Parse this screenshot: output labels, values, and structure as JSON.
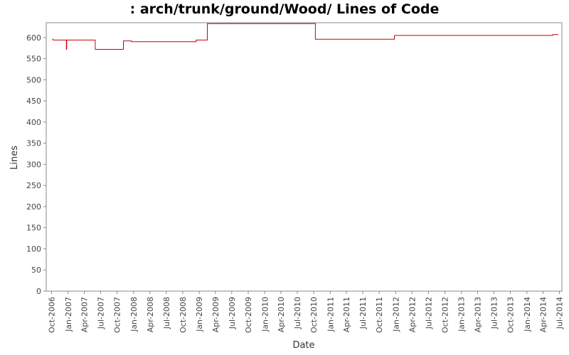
{
  "chart_data": {
    "type": "line",
    "title": ": arch/trunk/ground/Wood/ Lines of Code",
    "xlabel": "Date",
    "ylabel": "Lines",
    "ylim": [
      0,
      635
    ],
    "yticks": [
      0,
      50,
      100,
      150,
      200,
      250,
      300,
      350,
      400,
      450,
      500,
      550,
      600
    ],
    "xlim": [
      "2006-09-01",
      "2014-07-15"
    ],
    "xticks": [
      "2006-10-01",
      "2007-01-01",
      "2007-04-01",
      "2007-07-01",
      "2007-10-01",
      "2008-01-01",
      "2008-04-01",
      "2008-07-01",
      "2008-10-01",
      "2009-01-01",
      "2009-04-01",
      "2009-07-01",
      "2009-10-01",
      "2010-01-01",
      "2010-04-01",
      "2010-07-01",
      "2010-10-01",
      "2011-01-01",
      "2011-04-01",
      "2011-07-01",
      "2011-10-01",
      "2012-01-01",
      "2012-04-01",
      "2012-07-01",
      "2012-10-01",
      "2013-01-01",
      "2013-04-01",
      "2013-07-01",
      "2013-10-01",
      "2014-01-01",
      "2014-04-01",
      "2014-07-01"
    ],
    "xtick_labels": [
      "Oct-2006",
      "Jan-2007",
      "Apr-2007",
      "Jul-2007",
      "Oct-2007",
      "Jan-2008",
      "Apr-2008",
      "Jul-2008",
      "Oct-2008",
      "Jan-2009",
      "Apr-2009",
      "Jul-2009",
      "Oct-2009",
      "Jan-2010",
      "Apr-2010",
      "Jul-2010",
      "Oct-2010",
      "Jan-2011",
      "Apr-2011",
      "Jul-2011",
      "Oct-2011",
      "Jan-2012",
      "Apr-2012",
      "Jul-2012",
      "Oct-2012",
      "Jan-2013",
      "Apr-2013",
      "Jul-2013",
      "Oct-2013",
      "Jan-2014",
      "Apr-2014",
      "Jul-2014"
    ],
    "grid": false,
    "legend": "none",
    "series": [
      {
        "color": "#cc0000",
        "step": true,
        "points": [
          {
            "x": "2006-10-05",
            "y": 596
          },
          {
            "x": "2006-10-10",
            "y": 594
          },
          {
            "x": "2006-12-20",
            "y": 594
          },
          {
            "x": "2006-12-22",
            "y": 572
          },
          {
            "x": "2006-12-24",
            "y": 594
          },
          {
            "x": "2007-06-01",
            "y": 572
          },
          {
            "x": "2007-11-05",
            "y": 592
          },
          {
            "x": "2007-12-20",
            "y": 590
          },
          {
            "x": "2008-12-15",
            "y": 594
          },
          {
            "x": "2009-02-15",
            "y": 633
          },
          {
            "x": "2010-10-10",
            "y": 596
          },
          {
            "x": "2011-12-25",
            "y": 605
          },
          {
            "x": "2014-05-25",
            "y": 607
          },
          {
            "x": "2014-06-25",
            "y": 607
          }
        ]
      }
    ]
  }
}
